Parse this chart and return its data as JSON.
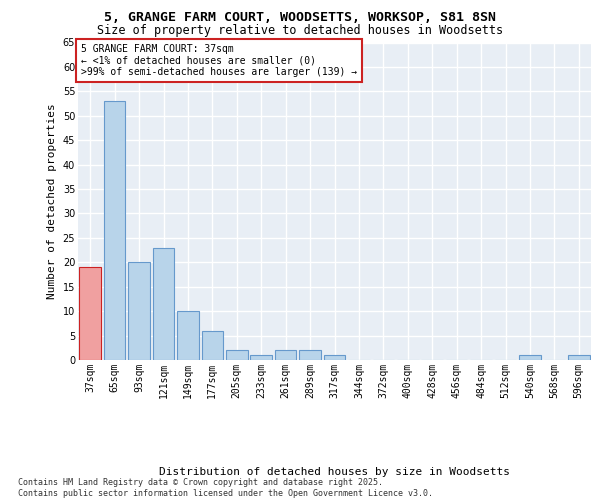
{
  "title_line1": "5, GRANGE FARM COURT, WOODSETTS, WORKSOP, S81 8SN",
  "title_line2": "Size of property relative to detached houses in Woodsetts",
  "xlabel": "Distribution of detached houses by size in Woodsetts",
  "ylabel": "Number of detached properties",
  "categories": [
    "37sqm",
    "65sqm",
    "93sqm",
    "121sqm",
    "149sqm",
    "177sqm",
    "205sqm",
    "233sqm",
    "261sqm",
    "289sqm",
    "317sqm",
    "344sqm",
    "372sqm",
    "400sqm",
    "428sqm",
    "456sqm",
    "484sqm",
    "512sqm",
    "540sqm",
    "568sqm",
    "596sqm"
  ],
  "values": [
    19,
    53,
    20,
    23,
    10,
    6,
    2,
    1,
    2,
    2,
    1,
    0,
    0,
    0,
    0,
    0,
    0,
    0,
    1,
    0,
    1
  ],
  "bar_color": "#b8d4ea",
  "bar_edge_color": "#6699cc",
  "highlight_bar_color": "#f0a0a0",
  "highlight_bar_edge_color": "#cc2222",
  "highlight_index": 0,
  "ylim_max": 65,
  "yticks": [
    0,
    5,
    10,
    15,
    20,
    25,
    30,
    35,
    40,
    45,
    50,
    55,
    60,
    65
  ],
  "bg_color": "#e8eef5",
  "grid_color": "#ffffff",
  "annotation_text": "5 GRANGE FARM COURT: 37sqm\n← <1% of detached houses are smaller (0)\n>99% of semi-detached houses are larger (139) →",
  "annotation_box_edge_color": "#cc2222",
  "footer_text": "Contains HM Land Registry data © Crown copyright and database right 2025.\nContains public sector information licensed under the Open Government Licence v3.0.",
  "title_fontsize": 9.5,
  "subtitle_fontsize": 8.5,
  "axis_label_fontsize": 8,
  "tick_fontsize": 7,
  "annotation_fontsize": 7,
  "footer_fontsize": 6
}
